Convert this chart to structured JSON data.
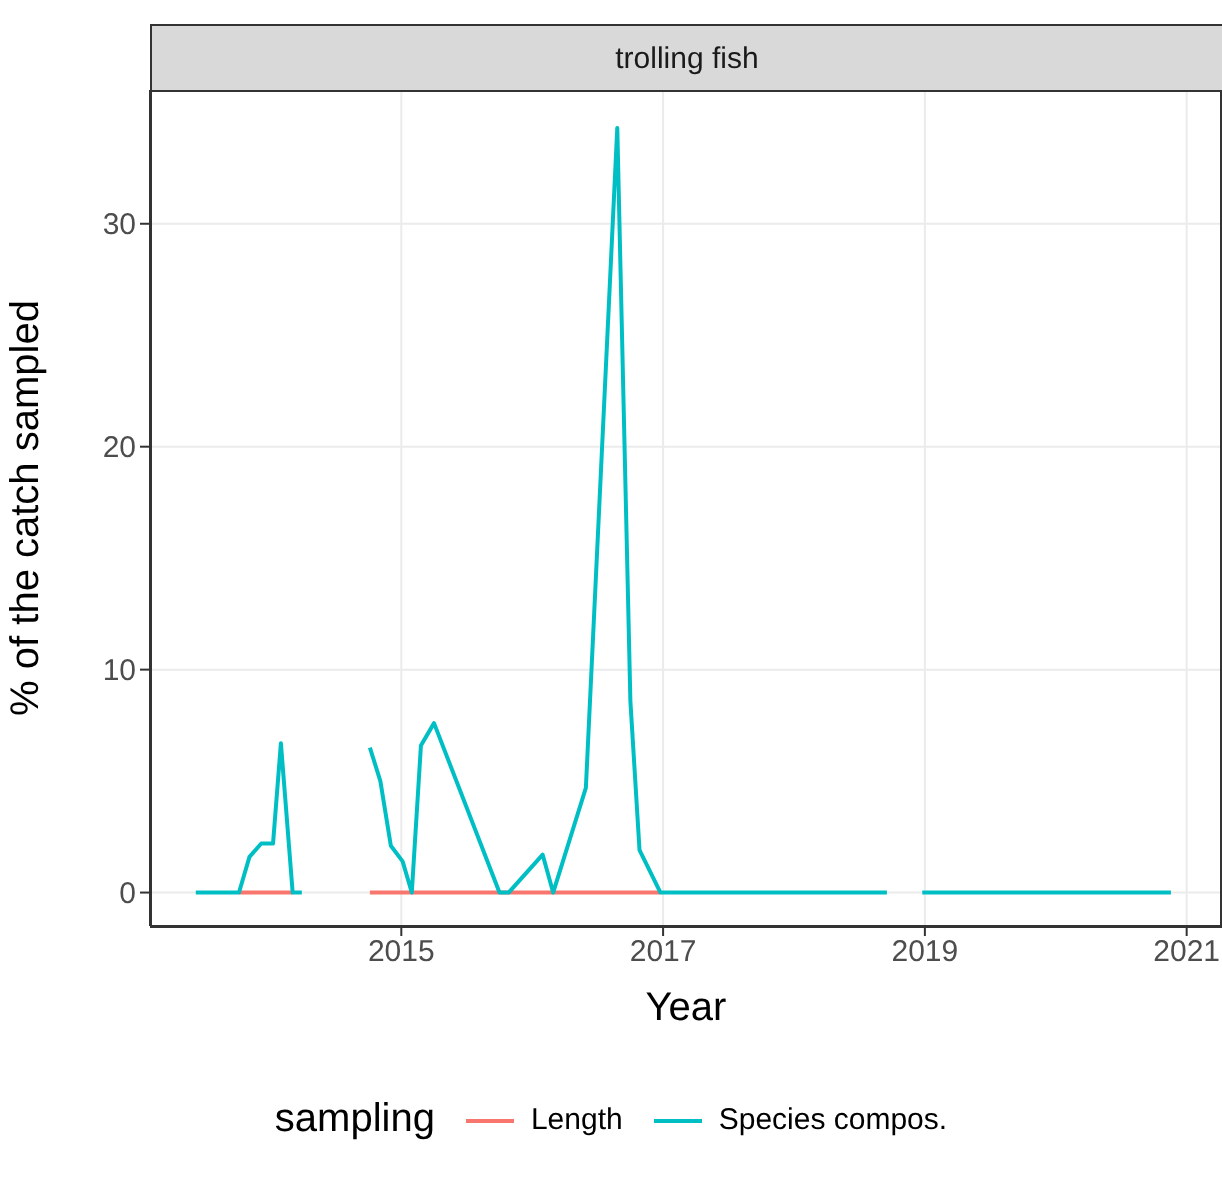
{
  "chart_data": {
    "type": "line",
    "title": "trolling fish",
    "xlabel": "Year",
    "ylabel": "% of the catch sampled",
    "legend_title": "sampling",
    "legend": "bottom",
    "grid": true,
    "marker": "none",
    "line_style": "solid",
    "xlim": [
      2013.08,
      2021.27
    ],
    "xticks": [
      2015,
      2017,
      2019,
      2021
    ],
    "ylim": [
      -1.5,
      36
    ],
    "yticks": [
      0,
      10,
      20,
      30
    ],
    "series": [
      {
        "name": "Length",
        "color": "#f8766d",
        "x": [
          2013.76,
          2014.17,
          2014.2,
          2014.76,
          2016.98
        ],
        "values": [
          0,
          0,
          null,
          0,
          0
        ]
      },
      {
        "name": "Species compos.",
        "color": "#00bfc4",
        "x": [
          2013.43,
          2013.76,
          2013.84,
          2013.93,
          2014.02,
          2014.08,
          2014.17,
          2014.24,
          2014.5,
          2014.76,
          2014.84,
          2014.92,
          2015.01,
          2015.08,
          2015.15,
          2015.25,
          2015.75,
          2015.82,
          2016.08,
          2016.16,
          2016.41,
          2016.65,
          2016.75,
          2016.82,
          2016.98,
          2018.71,
          2018.85,
          2018.98,
          2020.88
        ],
        "values": [
          0,
          0,
          1.6,
          2.2,
          2.2,
          6.7,
          0,
          0,
          null,
          6.5,
          5.0,
          2.1,
          1.4,
          0,
          6.6,
          7.6,
          0,
          0,
          1.7,
          0,
          4.7,
          34.3,
          8.6,
          1.9,
          0,
          0,
          null,
          0,
          0
        ]
      }
    ]
  }
}
